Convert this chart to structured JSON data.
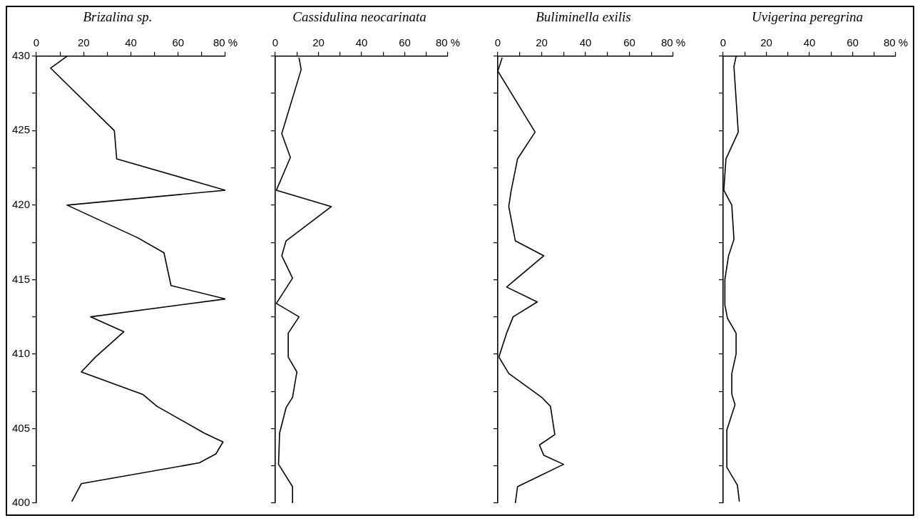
{
  "chart_data": [
    {
      "type": "line",
      "title": "Brizalina sp.",
      "xlim": [
        0,
        80
      ],
      "xticks": [
        0,
        {
          "value": 10,
          "label": null
        },
        20,
        {
          "value": 30,
          "label": null
        },
        40,
        {
          "value": 50,
          "label": null
        },
        60,
        {
          "value": 70,
          "label": null
        },
        {
          "value": 80,
          "label": "80 %"
        }
      ],
      "ylim": [
        400,
        430
      ],
      "yticks": [
        400,
        {
          "value": 402.5,
          "label": null
        },
        405,
        {
          "value": 407.5,
          "label": null
        },
        410,
        {
          "value": 412.5,
          "label": null
        },
        415,
        {
          "value": 417.5,
          "label": null
        },
        420,
        {
          "value": 422.5,
          "label": null
        },
        425,
        {
          "value": 427.5,
          "label": null
        },
        430
      ],
      "series": [
        {
          "color": "#000000",
          "x": [
            13,
            6,
            33,
            34,
            80,
            13,
            43,
            54,
            57,
            80,
            23,
            37,
            25,
            19,
            45,
            51,
            71,
            79,
            76,
            69,
            19,
            15
          ],
          "values": [
            430,
            429.2,
            425,
            423.1,
            421,
            420,
            417.8,
            416.8,
            414.6,
            413.7,
            412.5,
            411.5,
            409.8,
            408.8,
            407.3,
            406.5,
            404.7,
            404.1,
            403.3,
            402.7,
            401.3,
            400.1
          ]
        }
      ]
    },
    {
      "type": "line",
      "title": "Cassidulina neocarinata",
      "tick_labels": "x",
      "xlim": [
        0,
        80
      ],
      "xticks": [
        0,
        {
          "value": 10,
          "label": null
        },
        20,
        {
          "value": 30,
          "label": null
        },
        40,
        {
          "value": 50,
          "label": null
        },
        60,
        {
          "value": 70,
          "label": null
        },
        {
          "value": 80,
          "label": "80 %"
        }
      ],
      "ylim": [
        400,
        430
      ],
      "yticks": [
        400,
        {
          "value": 402.5,
          "label": null
        },
        405,
        {
          "value": 407.5,
          "label": null
        },
        410,
        {
          "value": 412.5,
          "label": null
        },
        415,
        {
          "value": 417.5,
          "label": null
        },
        420,
        {
          "value": 422.5,
          "label": null
        },
        425,
        {
          "value": 427.5,
          "label": null
        },
        430
      ],
      "series": [
        {
          "color": "#000000",
          "x": [
            11,
            12,
            3,
            7,
            0.5,
            26,
            5,
            3,
            8,
            0.5,
            11,
            6,
            6,
            10,
            8,
            5,
            2,
            1.5,
            8,
            8
          ],
          "values": [
            429.9,
            429.1,
            424.8,
            423.2,
            421,
            419.9,
            417.6,
            416.6,
            415.1,
            413.4,
            412.5,
            411.4,
            409.8,
            408.8,
            407.1,
            406.4,
            404.7,
            402.6,
            401.1,
            400
          ]
        }
      ]
    },
    {
      "type": "line",
      "title": "Buliminella exilis",
      "tick_labels": "x",
      "xlim": [
        0,
        80
      ],
      "xticks": [
        0,
        {
          "value": 10,
          "label": null
        },
        20,
        {
          "value": 30,
          "label": null
        },
        40,
        {
          "value": 50,
          "label": null
        },
        60,
        {
          "value": 70,
          "label": null
        },
        {
          "value": 80,
          "label": "80 %"
        }
      ],
      "ylim": [
        400,
        430
      ],
      "yticks": [
        400,
        {
          "value": 402.5,
          "label": null
        },
        405,
        {
          "value": 407.5,
          "label": null
        },
        410,
        {
          "value": 412.5,
          "label": null
        },
        415,
        {
          "value": 417.5,
          "label": null
        },
        420,
        {
          "value": 422.5,
          "label": null
        },
        425,
        {
          "value": 427.5,
          "label": null
        },
        430
      ],
      "series": [
        {
          "color": "#000000",
          "x": [
            2,
            0,
            17,
            9,
            6,
            5,
            8,
            21,
            4,
            18,
            7,
            4,
            0.5,
            5,
            20,
            24,
            26,
            19,
            21,
            30,
            9,
            8
          ],
          "values": [
            429.9,
            429,
            424.9,
            423.1,
            420.9,
            419.9,
            417.6,
            416.6,
            414.5,
            413.5,
            412.5,
            411.4,
            409.8,
            408.7,
            407.1,
            406.5,
            404.6,
            403.9,
            403.2,
            402.6,
            401.1,
            400
          ]
        }
      ]
    },
    {
      "type": "line",
      "title": "Uvigerina peregrina",
      "tick_labels": "x",
      "xlim": [
        0,
        80
      ],
      "xticks": [
        0,
        {
          "value": 10,
          "label": null
        },
        20,
        {
          "value": 30,
          "label": null
        },
        40,
        {
          "value": 50,
          "label": null
        },
        60,
        {
          "value": 70,
          "label": null
        },
        {
          "value": 80,
          "label": "80 %"
        }
      ],
      "ylim": [
        400,
        430
      ],
      "yticks": [
        400,
        {
          "value": 402.5,
          "label": null
        },
        405,
        {
          "value": 407.5,
          "label": null
        },
        410,
        {
          "value": 412.5,
          "label": null
        },
        415,
        {
          "value": 417.5,
          "label": null
        },
        420,
        {
          "value": 422.5,
          "label": null
        },
        425,
        {
          "value": 427.5,
          "label": null
        },
        430
      ],
      "series": [
        {
          "color": "#000000",
          "x": [
            6,
            5,
            7,
            1.3,
            0.3,
            4,
            5,
            2.5,
            0.8,
            0.8,
            2,
            6,
            6,
            4,
            4,
            5.5,
            1.7,
            1.7,
            6.6,
            7.5
          ],
          "values": [
            430,
            429.3,
            424.9,
            423.1,
            421,
            420,
            417.7,
            416.6,
            415,
            413.3,
            412.4,
            411.4,
            410,
            408.7,
            407.3,
            406.6,
            404.9,
            402.4,
            401.2,
            400.1
          ]
        }
      ]
    }
  ]
}
